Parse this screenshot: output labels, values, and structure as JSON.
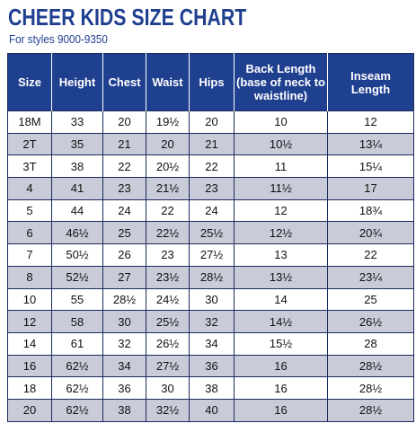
{
  "title": "CHEER KIDS SIZE CHART",
  "subtitle": "For styles 9000-9350",
  "colors": {
    "header_bg": "#1f3f8f",
    "shaded_row": "#c9cbd8",
    "title": "#1f3f8f"
  },
  "headers": [
    "Size",
    "Height",
    "Chest",
    "Waist",
    "Hips",
    "Back Length (base of neck to waistline)",
    "Inseam Length"
  ],
  "rows": [
    [
      "18M",
      "33",
      "20",
      "19½",
      "20",
      "10",
      "12"
    ],
    [
      "2T",
      "35",
      "21",
      "20",
      "21",
      "10½",
      "13¼"
    ],
    [
      "3T",
      "38",
      "22",
      "20½",
      "22",
      "11",
      "15¼"
    ],
    [
      "4",
      "41",
      "23",
      "21½",
      "23",
      "11½",
      "17"
    ],
    [
      "5",
      "44",
      "24",
      "22",
      "24",
      "12",
      "18¾"
    ],
    [
      "6",
      "46½",
      "25",
      "22½",
      "25½",
      "12½",
      "20¾"
    ],
    [
      "7",
      "50½",
      "26",
      "23",
      "27½",
      "13",
      "22"
    ],
    [
      "8",
      "52½",
      "27",
      "23½",
      "28½",
      "13½",
      "23¼"
    ],
    [
      "10",
      "55",
      "28½",
      "24½",
      "30",
      "14",
      "25"
    ],
    [
      "12",
      "58",
      "30",
      "25½",
      "32",
      "14½",
      "26½"
    ],
    [
      "14",
      "61",
      "32",
      "26½",
      "34",
      "15½",
      "28"
    ],
    [
      "16",
      "62½",
      "34",
      "27½",
      "36",
      "16",
      "28½"
    ],
    [
      "18",
      "62½",
      "36",
      "30",
      "38",
      "16",
      "28½"
    ],
    [
      "20",
      "62½",
      "38",
      "32½",
      "40",
      "16",
      "28½"
    ]
  ]
}
